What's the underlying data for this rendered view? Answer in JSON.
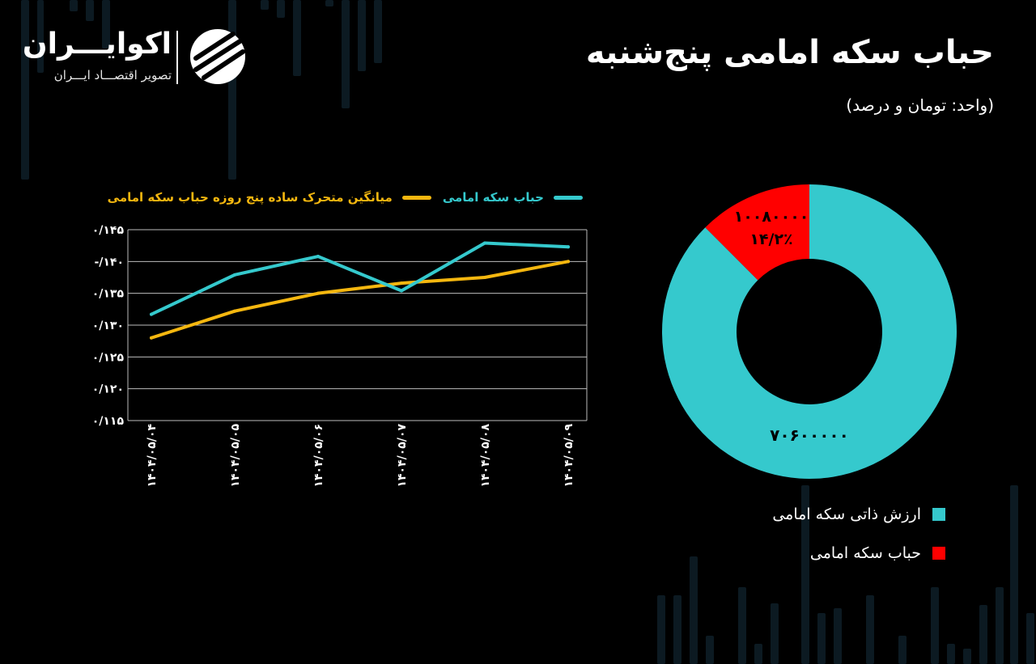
{
  "brand": {
    "name": "اکوایـــران",
    "tagline": "تصویر اقتصـــاد ایـــران"
  },
  "header": {
    "title": "حباب سکه امامی پنج‌شنبه",
    "subtitle": "(واحد:  تومان و درصد)"
  },
  "colors": {
    "teal": "#35c9cd",
    "yellow": "#f5b70f",
    "red": "#ff0000",
    "grid": "#bdbdbd"
  },
  "chart_data": [
    {
      "type": "line",
      "x": [
        "۱۴۰۴/۰۵/۰۴",
        "۱۴۰۴/۰۵/۰۵",
        "۱۴۰۴/۰۵/۰۶",
        "۱۴۰۴/۰۵/۰۷",
        "۱۴۰۴/۰۵/۰۸",
        "۱۴۰۴/۰۵/۰۹"
      ],
      "series": [
        {
          "name": "حباب سکه امامی",
          "color": "#35c9cd",
          "values": [
            0.1317,
            0.1379,
            0.1408,
            0.1354,
            0.1429,
            0.1423
          ]
        },
        {
          "name": "میانگین متحرک ساده پنج روزه حباب سکه امامی",
          "color": "#f5b70f",
          "values": [
            0.128,
            0.1322,
            0.135,
            0.1366,
            0.1375,
            0.14
          ]
        }
      ],
      "yticks": [
        "۰/۱۴۵",
        "-/۱۴۰",
        "۰/۱۳۵",
        "۰/۱۳۰",
        "۰/۱۲۵",
        "۰/۱۲۰",
        "۰/۱۱۵"
      ],
      "ylim": [
        0.115,
        0.145
      ],
      "grid": true,
      "legend_position": "top"
    },
    {
      "type": "pie",
      "donut": true,
      "slices": [
        {
          "name": "ارزش ذاتی سکه امامی",
          "value": 70600000,
          "label": "۷۰۶۰۰۰۰۰",
          "color": "#35c9cd"
        },
        {
          "name": "حباب سکه امامی",
          "value": 10080000,
          "label": "۱۰۰۸۰۰۰۰",
          "percent_label": "۱۴/۲٪",
          "color": "#ff0000"
        }
      ],
      "legend_position": "bottom-right"
    }
  ]
}
